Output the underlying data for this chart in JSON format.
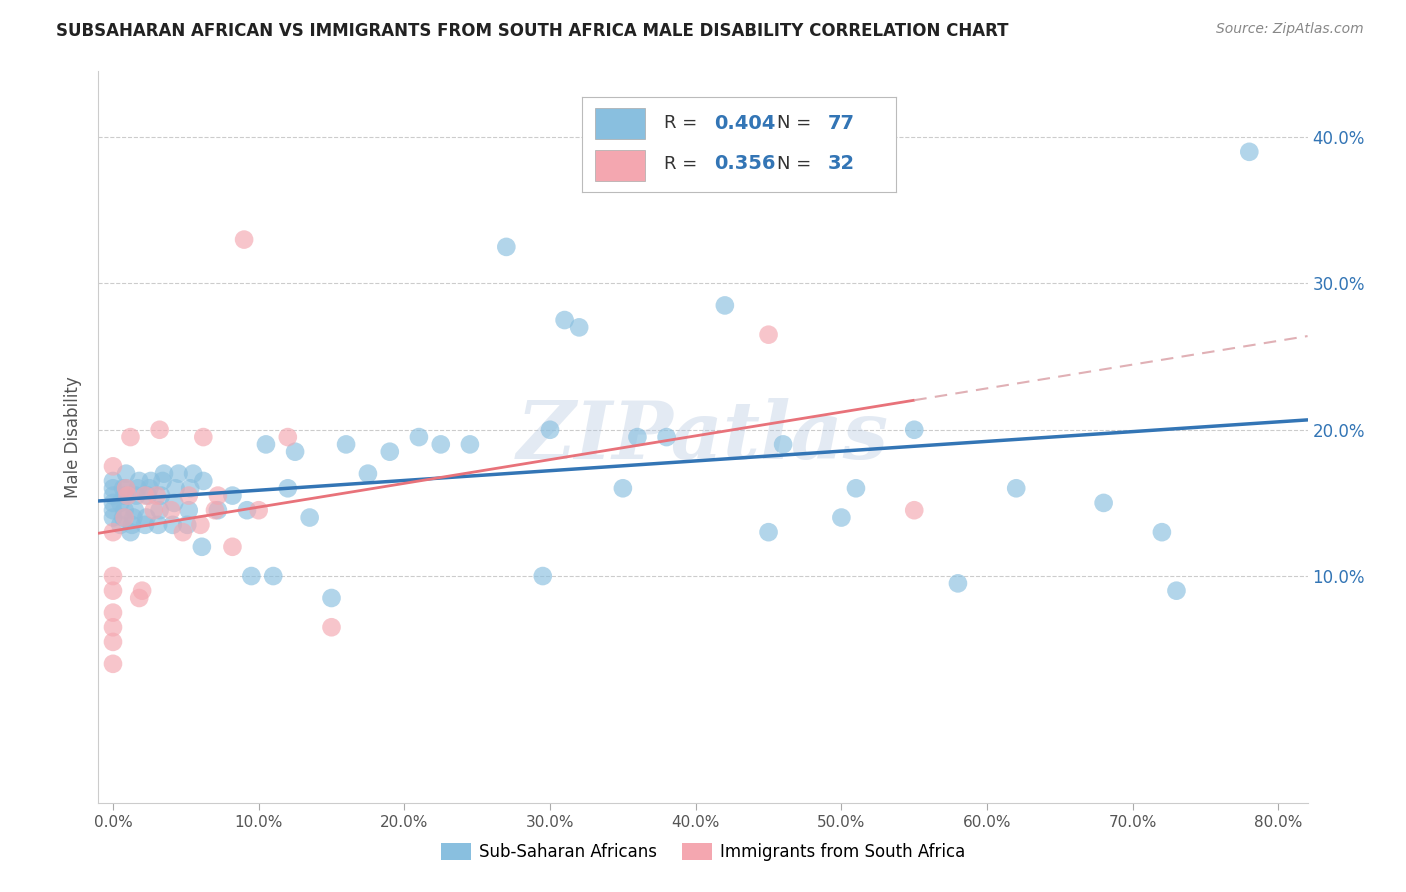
{
  "title": "SUBSAHARAN AFRICAN VS IMMIGRANTS FROM SOUTH AFRICA MALE DISABILITY CORRELATION CHART",
  "source": "Source: ZipAtlas.com",
  "ylabel_label": "Male Disability",
  "x_ticks": [
    0.0,
    0.1,
    0.2,
    0.3,
    0.4,
    0.5,
    0.6,
    0.7,
    0.8
  ],
  "y_ticks": [
    0.1,
    0.2,
    0.3,
    0.4
  ],
  "xlim": [
    -0.01,
    0.82
  ],
  "ylim": [
    -0.055,
    0.445
  ],
  "watermark": "ZIPatlas",
  "blue_R": 0.404,
  "blue_N": 77,
  "pink_R": 0.356,
  "pink_N": 32,
  "blue_color": "#89bfdf",
  "pink_color": "#f4a7b0",
  "blue_line_color": "#3375b5",
  "pink_line_color": "#e8727a",
  "pink_dash_color": "#e0b0b5",
  "grid_color": "#cccccc",
  "background_color": "#ffffff",
  "legend_label_blue": "Sub-Saharan Africans",
  "legend_label_pink": "Immigrants from South Africa",
  "blue_scatter_x": [
    0.0,
    0.0,
    0.0,
    0.0,
    0.0,
    0.0,
    0.005,
    0.005,
    0.007,
    0.007,
    0.008,
    0.008,
    0.009,
    0.009,
    0.012,
    0.013,
    0.014,
    0.015,
    0.016,
    0.017,
    0.018,
    0.022,
    0.023,
    0.024,
    0.025,
    0.026,
    0.031,
    0.032,
    0.033,
    0.034,
    0.035,
    0.041,
    0.042,
    0.043,
    0.045,
    0.051,
    0.052,
    0.053,
    0.055,
    0.061,
    0.062,
    0.072,
    0.082,
    0.092,
    0.095,
    0.105,
    0.11,
    0.12,
    0.125,
    0.135,
    0.15,
    0.16,
    0.175,
    0.19,
    0.21,
    0.225,
    0.245,
    0.27,
    0.295,
    0.3,
    0.31,
    0.32,
    0.35,
    0.36,
    0.38,
    0.42,
    0.45,
    0.46,
    0.5,
    0.51,
    0.55,
    0.58,
    0.62,
    0.68,
    0.72,
    0.73,
    0.78
  ],
  "blue_scatter_y": [
    0.14,
    0.145,
    0.15,
    0.155,
    0.16,
    0.165,
    0.135,
    0.15,
    0.14,
    0.16,
    0.145,
    0.155,
    0.16,
    0.17,
    0.13,
    0.135,
    0.14,
    0.145,
    0.155,
    0.16,
    0.165,
    0.135,
    0.14,
    0.155,
    0.16,
    0.165,
    0.135,
    0.145,
    0.155,
    0.165,
    0.17,
    0.135,
    0.15,
    0.16,
    0.17,
    0.135,
    0.145,
    0.16,
    0.17,
    0.12,
    0.165,
    0.145,
    0.155,
    0.145,
    0.1,
    0.19,
    0.1,
    0.16,
    0.185,
    0.14,
    0.085,
    0.19,
    0.17,
    0.185,
    0.195,
    0.19,
    0.19,
    0.325,
    0.1,
    0.2,
    0.275,
    0.27,
    0.16,
    0.195,
    0.195,
    0.285,
    0.13,
    0.19,
    0.14,
    0.16,
    0.2,
    0.095,
    0.16,
    0.15,
    0.13,
    0.09,
    0.39
  ],
  "pink_scatter_x": [
    0.0,
    0.0,
    0.0,
    0.0,
    0.0,
    0.0,
    0.0,
    0.0,
    0.008,
    0.009,
    0.01,
    0.012,
    0.018,
    0.02,
    0.022,
    0.028,
    0.03,
    0.032,
    0.04,
    0.048,
    0.052,
    0.06,
    0.062,
    0.07,
    0.072,
    0.082,
    0.09,
    0.1,
    0.12,
    0.15,
    0.45,
    0.55
  ],
  "pink_scatter_y": [
    0.04,
    0.055,
    0.065,
    0.075,
    0.09,
    0.1,
    0.13,
    0.175,
    0.14,
    0.16,
    0.155,
    0.195,
    0.085,
    0.09,
    0.155,
    0.145,
    0.155,
    0.2,
    0.145,
    0.13,
    0.155,
    0.135,
    0.195,
    0.145,
    0.155,
    0.12,
    0.33,
    0.145,
    0.195,
    0.065,
    0.265,
    0.145
  ]
}
